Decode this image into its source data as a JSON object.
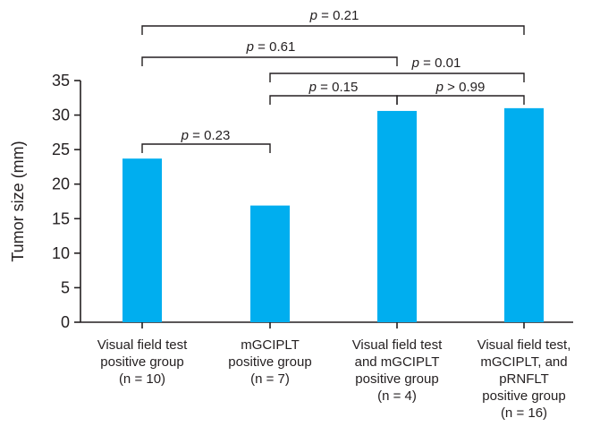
{
  "chart_data": {
    "type": "bar",
    "ylabel": "Tumor size (mm)",
    "ylim": [
      0,
      35
    ],
    "yticks": [
      0,
      5,
      10,
      15,
      20,
      25,
      30,
      35
    ],
    "grid": false,
    "bar_color": "#00aeef",
    "categories": [
      [
        "Visual field test",
        "positive group",
        "(n = 10)"
      ],
      [
        "mGCIPLT",
        "positive group",
        "(n = 7)"
      ],
      [
        "Visual field test",
        "and mGCIPLT",
        "positive group",
        "(n = 4)"
      ],
      [
        "Visual field test,",
        "mGCIPLT, and",
        "pRNFLT",
        "positive group",
        "(n = 16)"
      ]
    ],
    "values": [
      23.7,
      16.9,
      30.6,
      31.0
    ],
    "comparisons": [
      {
        "from": 0,
        "to": 1,
        "p_symbol": "p",
        "p_text": " = 0.23"
      },
      {
        "from": 1,
        "to": 2,
        "p_symbol": "p",
        "p_text": " = 0.15"
      },
      {
        "from": 2,
        "to": 3,
        "p_symbol": "p",
        "p_text": " > 0.99"
      },
      {
        "from": 1,
        "to": 3,
        "p_symbol": "p",
        "p_text": " = 0.01"
      },
      {
        "from": 0,
        "to": 2,
        "p_symbol": "p",
        "p_text": " = 0.61"
      },
      {
        "from": 0,
        "to": 3,
        "p_symbol": "p",
        "p_text": " = 0.21"
      }
    ]
  }
}
